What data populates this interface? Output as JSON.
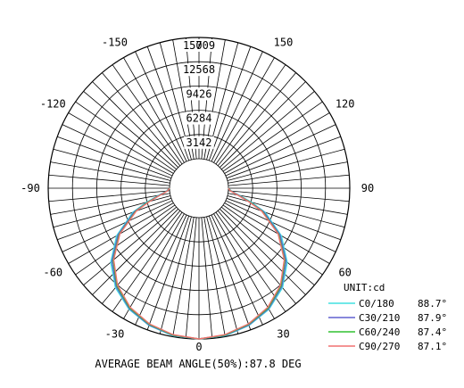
{
  "chart_data": {
    "type": "polar",
    "unit_label": "UNIT:cd",
    "rings": [
      3142,
      6284,
      9426,
      12568,
      15709
    ],
    "angle_ticks": [
      {
        "deg": 0,
        "label": "0"
      },
      {
        "deg": 30,
        "label": "30"
      },
      {
        "deg": 60,
        "label": "60"
      },
      {
        "deg": 90,
        "label": "90"
      },
      {
        "deg": 120,
        "label": "120"
      },
      {
        "deg": 150,
        "label": "150"
      },
      {
        "deg": -30,
        "label": "-30"
      },
      {
        "deg": -60,
        "label": "-60"
      },
      {
        "deg": -90,
        "label": "-90"
      },
      {
        "deg": -120,
        "label": "-120"
      },
      {
        "deg": -150,
        "label": "-150"
      },
      {
        "deg": 180,
        "label": "0"
      }
    ],
    "series": [
      {
        "name": "C0/180",
        "value_text": "88.7°",
        "color": "#40e0e0",
        "points": [
          [
            0,
            15709
          ],
          [
            10,
            15600
          ],
          [
            20,
            15100
          ],
          [
            30,
            14300
          ],
          [
            40,
            13000
          ],
          [
            50,
            11100
          ],
          [
            60,
            8500
          ],
          [
            70,
            5300
          ],
          [
            75,
            3200
          ],
          [
            80,
            1500
          ],
          [
            85,
            400
          ],
          [
            90,
            0
          ]
        ]
      },
      {
        "name": "C30/210",
        "value_text": "87.9°",
        "color": "#6060d0",
        "points": [
          [
            0,
            15709
          ],
          [
            10,
            15550
          ],
          [
            20,
            15050
          ],
          [
            30,
            14200
          ],
          [
            40,
            12850
          ],
          [
            50,
            10900
          ],
          [
            60,
            8300
          ],
          [
            70,
            5100
          ],
          [
            75,
            3000
          ],
          [
            80,
            1400
          ],
          [
            85,
            350
          ],
          [
            90,
            0
          ]
        ]
      },
      {
        "name": "C60/240",
        "value_text": "87.4°",
        "color": "#30c030",
        "points": [
          [
            0,
            15709
          ],
          [
            10,
            15500
          ],
          [
            20,
            14950
          ],
          [
            30,
            14100
          ],
          [
            40,
            12700
          ],
          [
            50,
            10700
          ],
          [
            60,
            8100
          ],
          [
            70,
            4900
          ],
          [
            75,
            2900
          ],
          [
            80,
            1300
          ],
          [
            85,
            300
          ],
          [
            90,
            0
          ]
        ]
      },
      {
        "name": "C90/270",
        "value_text": "87.1°",
        "color": "#f07070",
        "points": [
          [
            0,
            15709
          ],
          [
            10,
            15450
          ],
          [
            20,
            14900
          ],
          [
            30,
            14000
          ],
          [
            40,
            12600
          ],
          [
            50,
            10600
          ],
          [
            60,
            8000
          ],
          [
            70,
            4800
          ],
          [
            75,
            2800
          ],
          [
            80,
            1250
          ],
          [
            85,
            280
          ],
          [
            90,
            0
          ]
        ]
      }
    ],
    "footer": "AVERAGE BEAM ANGLE(50%):87.8 DEG"
  }
}
